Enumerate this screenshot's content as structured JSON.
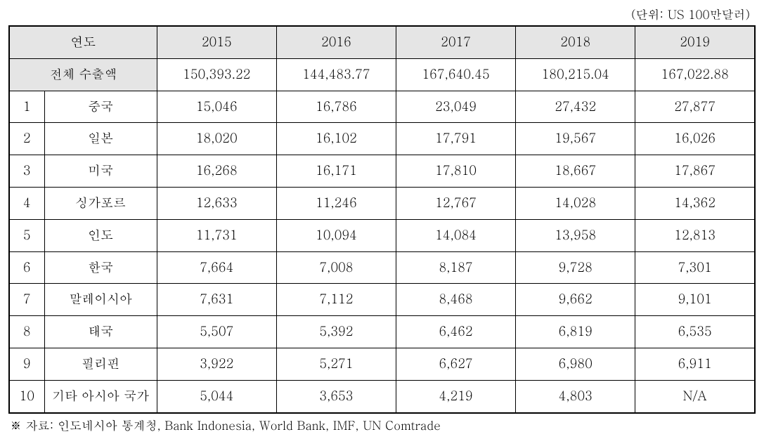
{
  "unit_label": "(단위: US 100만달러)",
  "headers": {
    "year_label": "연도",
    "total_export_label": "전체 수출액",
    "years": [
      "2015",
      "2016",
      "2017",
      "2018",
      "2019"
    ]
  },
  "total_exports": [
    "150,393.22",
    "144,483.77",
    "167,640.45",
    "180,215.04",
    "167,022.88"
  ],
  "rows": [
    {
      "rank": "1",
      "country": "중국",
      "values": [
        "15,046",
        "16,786",
        "23,049",
        "27,432",
        "27,877"
      ]
    },
    {
      "rank": "2",
      "country": "일본",
      "values": [
        "18,020",
        "16,102",
        "17,791",
        "19,567",
        "16,026"
      ]
    },
    {
      "rank": "3",
      "country": "미국",
      "values": [
        "16,268",
        "16,171",
        "17,810",
        "18,667",
        "17,867"
      ]
    },
    {
      "rank": "4",
      "country": "싱가포르",
      "values": [
        "12,633",
        "11,246",
        "12,767",
        "14,028",
        "14,362"
      ]
    },
    {
      "rank": "5",
      "country": "인도",
      "values": [
        "11,731",
        "10,094",
        "14,084",
        "13,958",
        "12,813"
      ]
    },
    {
      "rank": "6",
      "country": "한국",
      "values": [
        "7,664",
        "7,008",
        "8,187",
        "9,728",
        "7,301"
      ]
    },
    {
      "rank": "7",
      "country": "말레이시아",
      "values": [
        "7,631",
        "7,112",
        "8,468",
        "9,662",
        "9,101"
      ]
    },
    {
      "rank": "8",
      "country": "태국",
      "values": [
        "5,507",
        "5,392",
        "6,462",
        "6,819",
        "6,535"
      ]
    },
    {
      "rank": "9",
      "country": "필리핀",
      "values": [
        "3,922",
        "5,271",
        "6,627",
        "6,980",
        "6,911"
      ]
    },
    {
      "rank": "10",
      "country": "기타 아시아 국가",
      "values": [
        "5,044",
        "3,653",
        "4,219",
        "4,803",
        "N/A"
      ]
    }
  ],
  "source_note": "※ 자료: 인도네시아 통계청, Bank Indonesia, World Bank, IMF, UN Comtrade"
}
